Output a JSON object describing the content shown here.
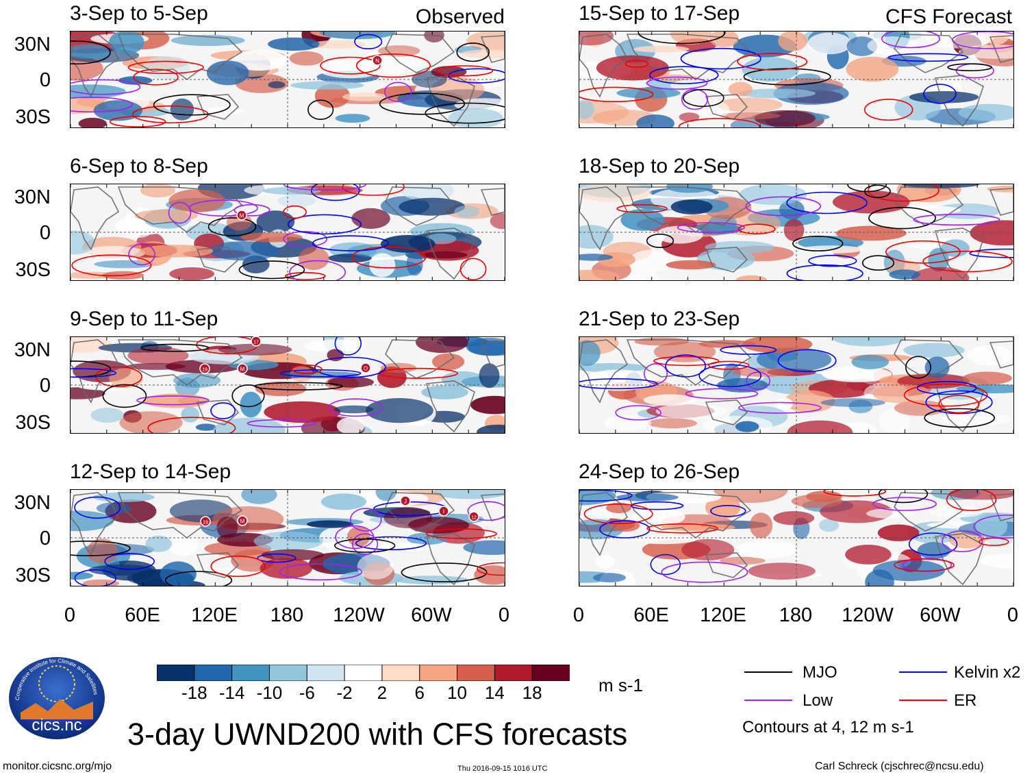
{
  "header": {
    "observed_label": "Observed",
    "forecast_label": "CFS Forecast"
  },
  "panels": {
    "observed": [
      "3-Sep to 5-Sep",
      "6-Sep to 8-Sep",
      "9-Sep to 11-Sep",
      "12-Sep to 14-Sep"
    ],
    "forecast": [
      "15-Sep to 17-Sep",
      "18-Sep to 20-Sep",
      "21-Sep to 23-Sep",
      "24-Sep to 26-Sep"
    ]
  },
  "axes": {
    "lat_labels": [
      "30N",
      "0",
      "30S"
    ],
    "lon_labels": [
      "0",
      "60E",
      "120E",
      "180",
      "120W",
      "60W",
      "0"
    ]
  },
  "colorbar": {
    "labels": [
      "-18",
      "-14",
      "-10",
      "-6",
      "-2",
      "2",
      "6",
      "10",
      "14",
      "18"
    ],
    "colors": [
      "#08306b",
      "#2166ac",
      "#4393c3",
      "#92c5de",
      "#d1e5f0",
      "#ffffff",
      "#fddbc7",
      "#f4a582",
      "#d6604d",
      "#b2182b",
      "#67001f"
    ],
    "units": "m s-1"
  },
  "legend": {
    "items": [
      {
        "label": "MJO",
        "color": "#000000"
      },
      {
        "label": "Kelvin x2",
        "color": "#0000ee"
      },
      {
        "label": "Low",
        "color": "#a020f0"
      },
      {
        "label": "ER",
        "color": "#ee0000"
      }
    ],
    "contour_note": "Contours at 4, 12 m s-1"
  },
  "storm_markers": {
    "p0": [
      "N"
    ],
    "p1": [
      "M"
    ],
    "p2": [
      "17",
      "19",
      "M",
      "O"
    ],
    "p3": [
      "19",
      "M",
      "J",
      "I",
      "12"
    ]
  },
  "title": "3-day UWND200 with CFS forecasts",
  "logo_text": "cics.nc",
  "logo_arc_text": "Cooperative Institute for Climate and Satellites",
  "footer": {
    "url": "monitor.cicsnc.org/mjo",
    "timestamp": "Thu 2016-09-15 1016 UTC",
    "credit": "Carl Schreck (cjschrec@ncsu.edu)"
  }
}
